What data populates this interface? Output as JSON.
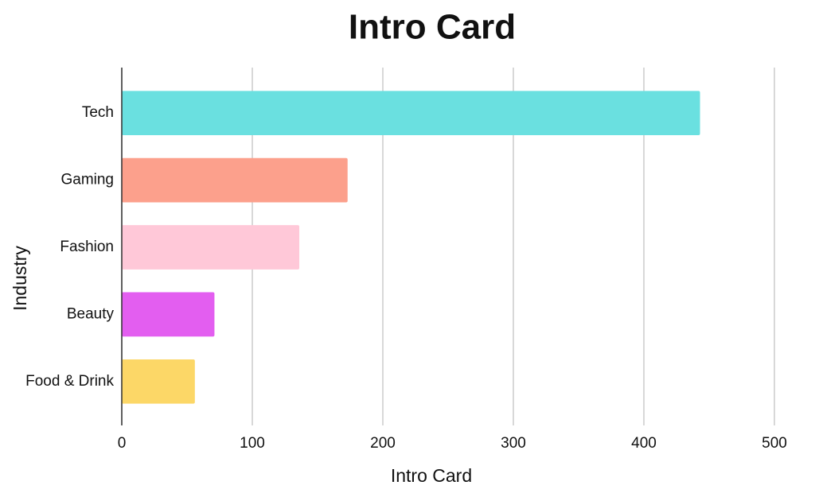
{
  "chart_data": {
    "type": "bar",
    "orientation": "horizontal",
    "title": "Intro Card",
    "x_label": "Intro Card",
    "y_label": "Industry",
    "categories": [
      "Tech",
      "Gaming",
      "Fashion",
      "Beauty",
      "Food & Drink"
    ],
    "values": [
      443,
      173,
      136,
      71,
      56
    ],
    "colors": [
      "#6ae0e0",
      "#fca08c",
      "#ffc8d8",
      "#e35ef0",
      "#fcd767"
    ],
    "xlim": [
      0,
      500
    ],
    "xticks": [
      0,
      100,
      200,
      300,
      400,
      500
    ],
    "grid": true
  }
}
